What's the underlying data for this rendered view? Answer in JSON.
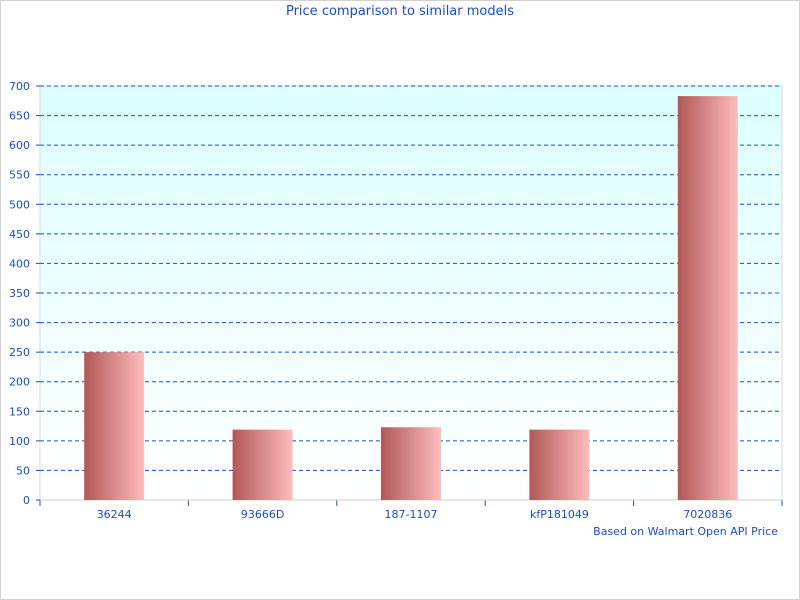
{
  "chart_data": {
    "type": "bar",
    "title": "Price comparison to similar models",
    "categories": [
      "36244",
      "93666D",
      "187-1107",
      "kfP181049",
      "7020836"
    ],
    "values": [
      250,
      119,
      123,
      119,
      683
    ],
    "ylim": [
      0,
      700
    ],
    "ytick_step": 50,
    "grid": true,
    "annotation": "Based on Walmart Open API Price",
    "colors": {
      "bar_dark": "#b05858",
      "bar_light": "#ffbcbc",
      "grid": "#1a4cc8",
      "text": "#1a4cc8",
      "bg_top": "#dcffff",
      "bg_bottom": "#ffffff"
    }
  }
}
